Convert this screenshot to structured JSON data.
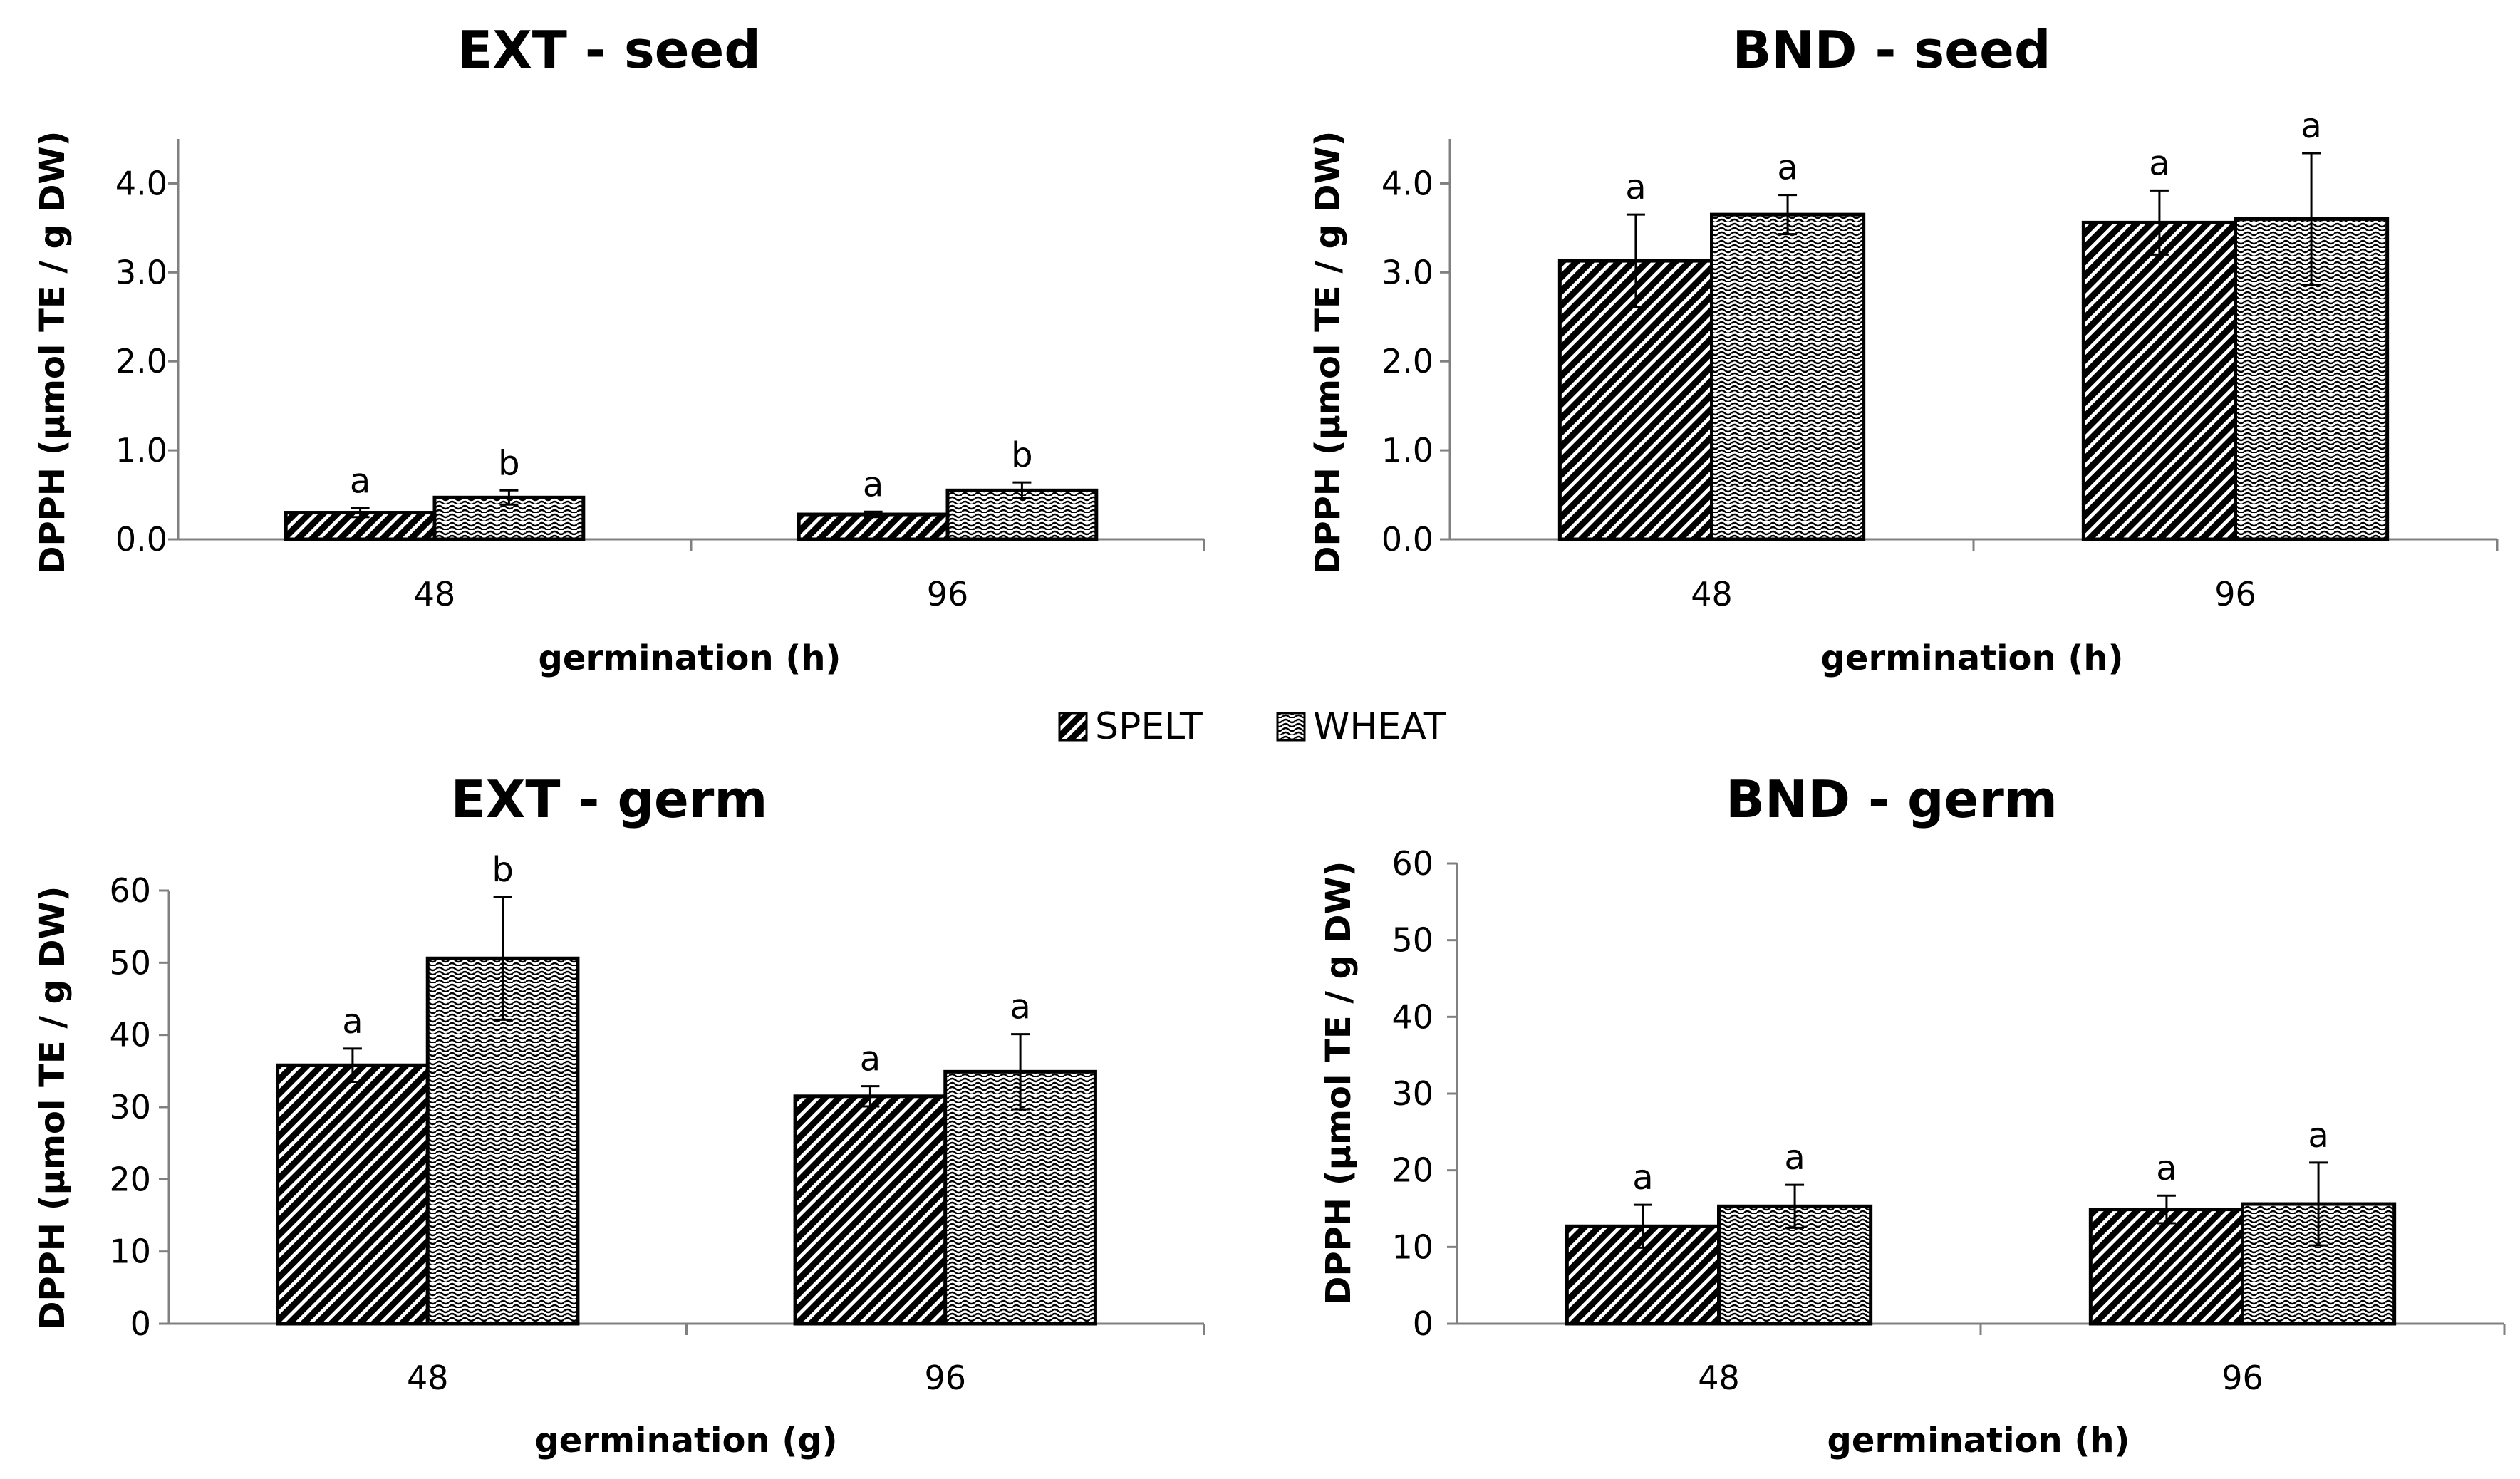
{
  "legend": [
    {
      "name": "SPELT",
      "pattern": "hatch"
    },
    {
      "name": "WHEAT",
      "pattern": "wave"
    }
  ],
  "chart_data": [
    {
      "type": "bar",
      "title": "EXT - seed",
      "xlabel": "germination (h)",
      "ylabel": "DPPH (µmol TE / g DW)",
      "categories": [
        "48",
        "96"
      ],
      "ylim": [
        0,
        4.5
      ],
      "yticks": [
        "0.0",
        "1.0",
        "2.0",
        "3.0",
        "4.0"
      ],
      "ytick_values": [
        0,
        1,
        2,
        3,
        4
      ],
      "series": [
        {
          "name": "SPELT",
          "values": [
            0.3,
            0.28
          ],
          "errors": [
            0.05,
            0.03
          ],
          "labels": [
            "a",
            "a"
          ]
        },
        {
          "name": "WHEAT",
          "values": [
            0.47,
            0.55
          ],
          "errors": [
            0.08,
            0.09
          ],
          "labels": [
            "b",
            "b"
          ]
        }
      ]
    },
    {
      "type": "bar",
      "title": "BND - seed",
      "xlabel": "germination (h)",
      "ylabel": "DPPH (µmol TE / g DW)",
      "categories": [
        "48",
        "96"
      ],
      "ylim": [
        0,
        4.5
      ],
      "yticks": [
        "0.0",
        "1.0",
        "2.0",
        "3.0",
        "4.0"
      ],
      "ytick_values": [
        0,
        1,
        2,
        3,
        4
      ],
      "series": [
        {
          "name": "SPELT",
          "values": [
            3.13,
            3.56
          ],
          "errors": [
            0.52,
            0.36
          ],
          "labels": [
            "a",
            "a"
          ]
        },
        {
          "name": "WHEAT",
          "values": [
            3.65,
            3.6
          ],
          "errors": [
            0.22,
            0.74
          ],
          "labels": [
            "a",
            "a"
          ]
        }
      ]
    },
    {
      "type": "bar",
      "title": "EXT - germ",
      "xlabel": "germination (g)",
      "ylabel": "DPPH (µmol TE / g DW)",
      "categories": [
        "48",
        "96"
      ],
      "ylim": [
        0,
        60
      ],
      "yticks": [
        "0",
        "10",
        "20",
        "30",
        "40",
        "50",
        "60"
      ],
      "ytick_values": [
        0,
        10,
        20,
        30,
        40,
        50,
        60
      ],
      "series": [
        {
          "name": "SPELT",
          "values": [
            35.8,
            31.5
          ],
          "errors": [
            2.3,
            1.4
          ],
          "labels": [
            "a",
            "a"
          ]
        },
        {
          "name": "WHEAT",
          "values": [
            50.6,
            34.9
          ],
          "errors": [
            8.5,
            5.2
          ],
          "labels": [
            "b",
            "a"
          ]
        }
      ]
    },
    {
      "type": "bar",
      "title": "BND - germ",
      "xlabel": "germination (h)",
      "ylabel": "DPPH (µmol TE / g DW)",
      "categories": [
        "48",
        "96"
      ],
      "ylim": [
        0,
        60
      ],
      "yticks": [
        "0",
        "10",
        "20",
        "30",
        "40",
        "50",
        "60"
      ],
      "ytick_values": [
        0,
        10,
        20,
        30,
        40,
        50,
        60
      ],
      "series": [
        {
          "name": "SPELT",
          "values": [
            12.7,
            14.9
          ],
          "errors": [
            2.8,
            1.8
          ],
          "labels": [
            "a",
            "a"
          ]
        },
        {
          "name": "WHEAT",
          "values": [
            15.3,
            15.6
          ],
          "errors": [
            2.8,
            5.4
          ],
          "labels": [
            "a",
            "a"
          ]
        }
      ]
    }
  ]
}
